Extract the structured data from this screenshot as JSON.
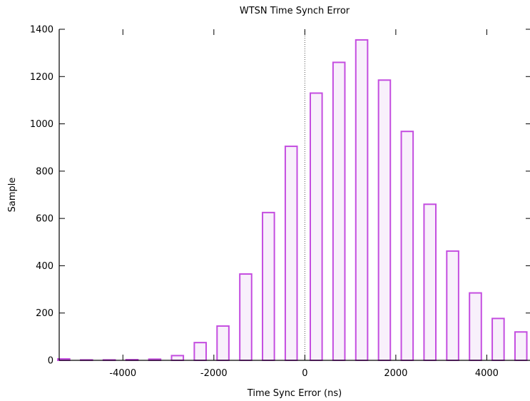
{
  "chart_data": {
    "type": "bar",
    "title": "WTSN Time Synch Error",
    "xlabel": "Time Sync Error (ns)",
    "ylabel": "Sample",
    "xlim": [
      -5400,
      4950
    ],
    "ylim": [
      0,
      1400
    ],
    "x_ticks": [
      -4000,
      -2000,
      0,
      2000,
      4000
    ],
    "x_tick_labels": [
      "-4000",
      "-2000",
      "0",
      "2000",
      "4000"
    ],
    "y_ticks": [
      0,
      200,
      400,
      600,
      800,
      1000,
      1200,
      1400
    ],
    "y_tick_labels": [
      "0",
      "200",
      "400",
      "600",
      "800",
      "1000",
      "1200",
      "1400"
    ],
    "bin_width": 260,
    "bins": [
      {
        "x": -5300,
        "y": 6
      },
      {
        "x": -4800,
        "y": 2
      },
      {
        "x": -4300,
        "y": 2
      },
      {
        "x": -3800,
        "y": 3
      },
      {
        "x": -3300,
        "y": 5
      },
      {
        "x": -2800,
        "y": 20
      },
      {
        "x": -2300,
        "y": 75
      },
      {
        "x": -1800,
        "y": 145
      },
      {
        "x": -1300,
        "y": 365
      },
      {
        "x": -800,
        "y": 625
      },
      {
        "x": -300,
        "y": 905
      },
      {
        "x": 250,
        "y": 1130
      },
      {
        "x": 750,
        "y": 1260
      },
      {
        "x": 1250,
        "y": 1355
      },
      {
        "x": 1750,
        "y": 1185
      },
      {
        "x": 2250,
        "y": 968
      },
      {
        "x": 2750,
        "y": 660
      },
      {
        "x": 3250,
        "y": 462
      },
      {
        "x": 3750,
        "y": 285
      },
      {
        "x": 4250,
        "y": 177
      },
      {
        "x": 4750,
        "y": 120
      }
    ],
    "zero_line": {
      "x": 0,
      "style": "dotted"
    },
    "grid": false,
    "legend": "none",
    "colors": {
      "bar_stroke": "#c44ee0",
      "bar_fill": "#f8f0fb",
      "axis": "#000000",
      "text": "#000000"
    }
  }
}
